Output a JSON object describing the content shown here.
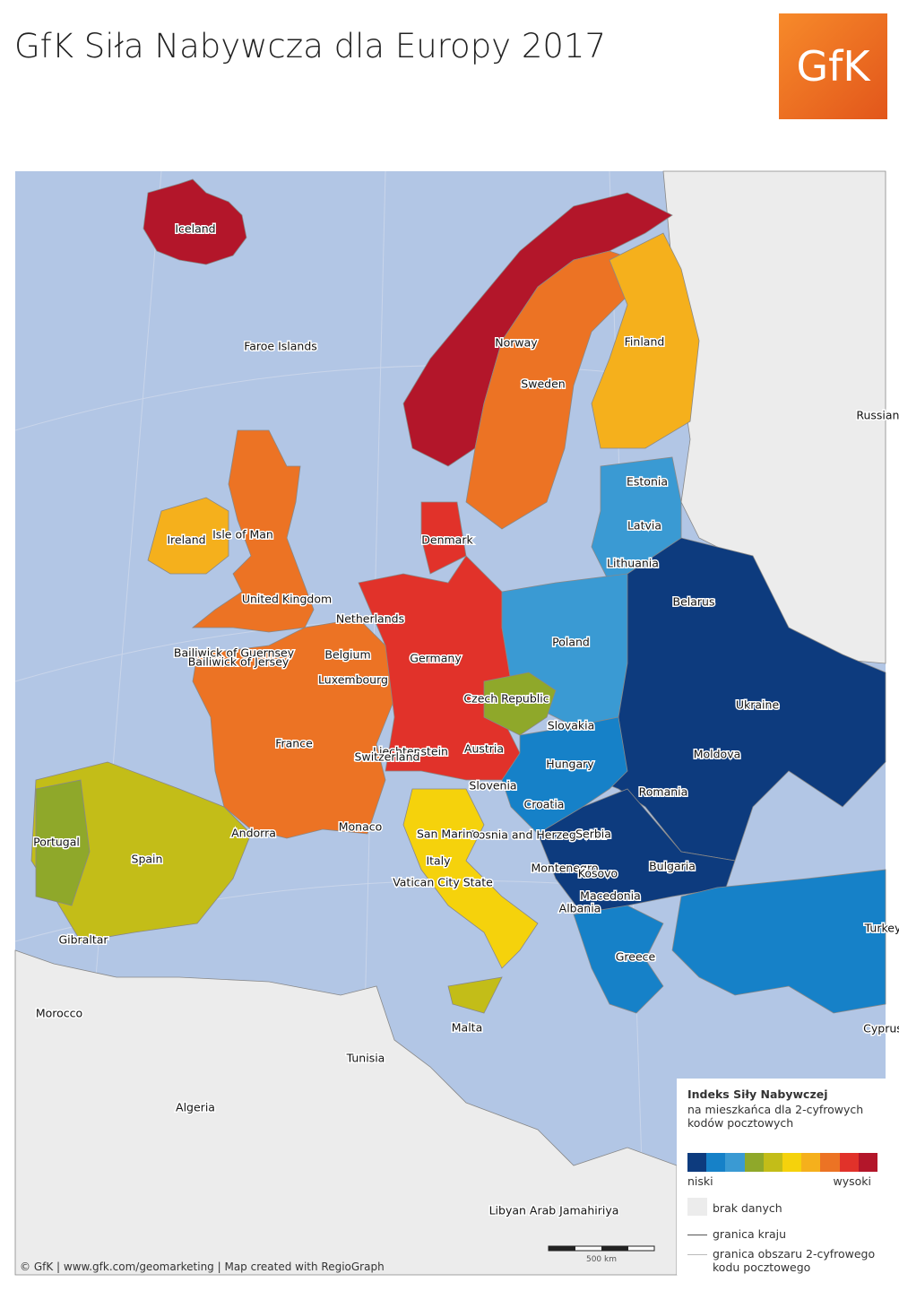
{
  "header": {
    "title": "GfK Siła Nabywcza dla Europy 2017",
    "logo": "GfK"
  },
  "map": {
    "labels": [
      "Iceland",
      "Faroe Islands",
      "Norway",
      "Finland",
      "Sweden",
      "Russian F",
      "Estonia",
      "Latvia",
      "Ireland",
      "Isle of Man",
      "Denmark",
      "Lithuania",
      "United Kingdom",
      "Belarus",
      "Netherlands",
      "Poland",
      "Bailiwick of Guernsey",
      "Bailiwick of Jersey",
      "Belgium",
      "Germany",
      "Luxembourg",
      "Czech Republic",
      "Ukraine",
      "Slovakia",
      "France",
      "Liechtenstein",
      "Switzerland",
      "Austria",
      "Moldova",
      "Hungary",
      "Slovenia",
      "Romania",
      "Croatia",
      "Bosnia and Herzegovina",
      "Serbia",
      "Andorra",
      "Monaco",
      "San Marino",
      "Portugal",
      "Spain",
      "Montenegro",
      "Kosovo",
      "Bulgaria",
      "Italy",
      "Vatican City State",
      "Macedonia",
      "Albania",
      "Turkey",
      "Gibraltar",
      "Greece",
      "Morocco",
      "Malta",
      "Cyprus",
      "Tunisia",
      "Algeria",
      "Libyan Arab Jamahiriya"
    ],
    "scale_bar": "500 km",
    "credit": "© GfK | www.gfk.com/geomarketing | Map created with RegioGraph"
  },
  "legend": {
    "title": "Indeks Siły Nabywczej",
    "subtitle": "na mieszkańca dla 2-cyfrowych kodów pocztowych",
    "colors": [
      "#0d3b7e",
      "#1681c8",
      "#3a9ad3",
      "#8fa82a",
      "#c3bd18",
      "#f5d20c",
      "#f5b01c",
      "#ec7324",
      "#e1322a",
      "#b3162a"
    ],
    "low": "niski",
    "high": "wysoki",
    "no_data": "brak danych",
    "country_border": "granica kraju",
    "postal_border": "granica obszaru 2-cyfrowego kodu pocztowego"
  }
}
